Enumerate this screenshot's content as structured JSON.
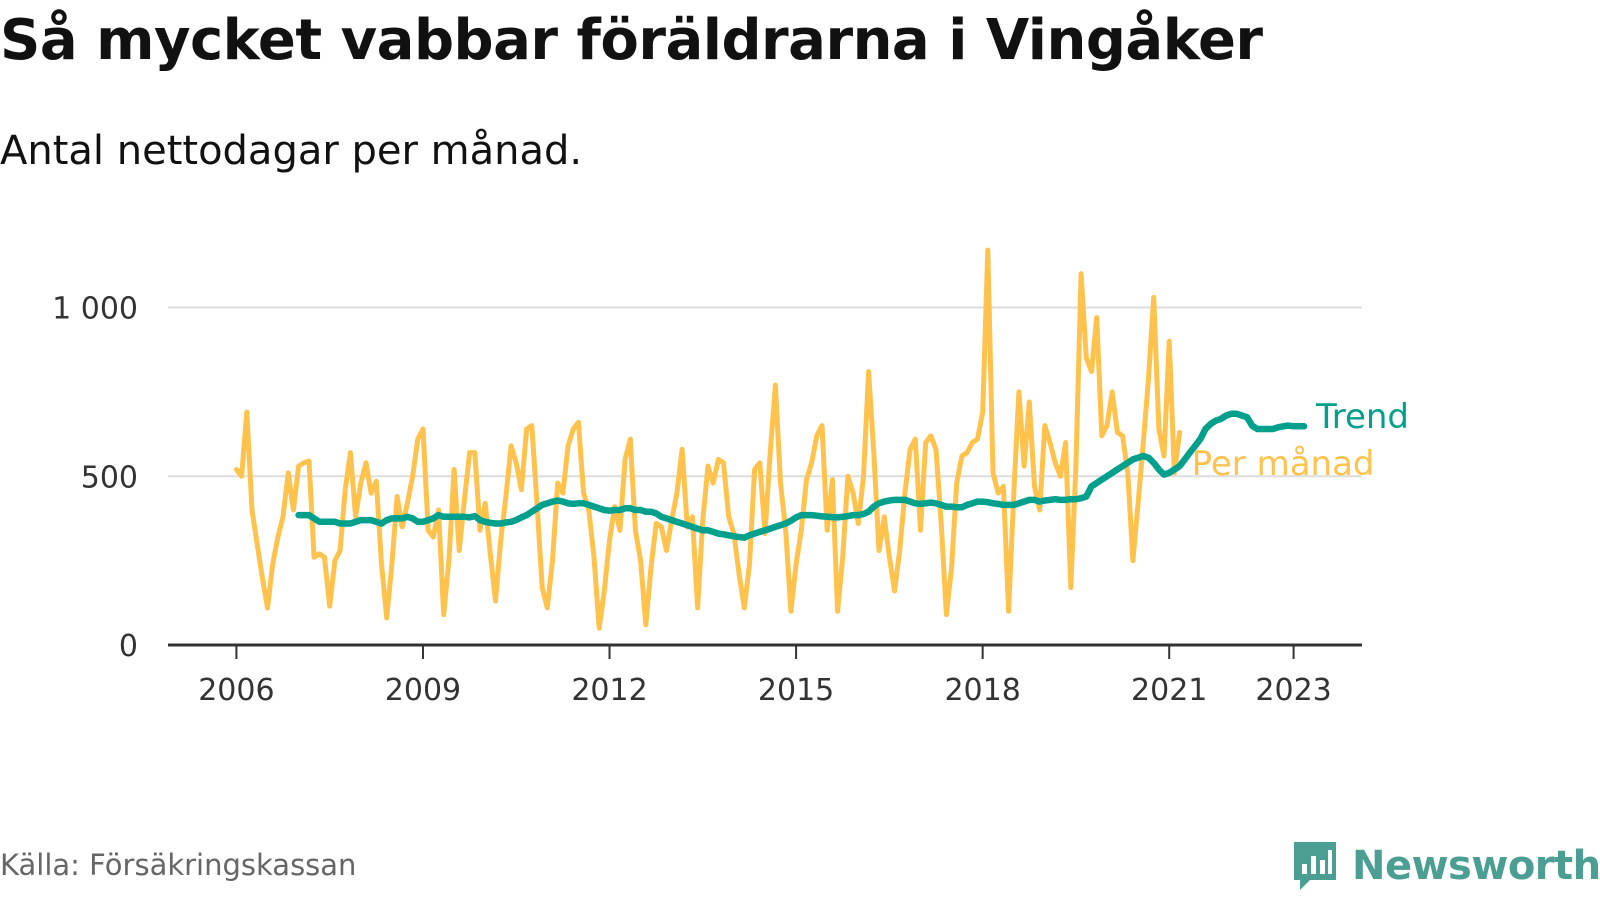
{
  "title": "Så mycket vabbar föräldrarna i Vingåker",
  "subtitle": "Antal nettodagar per månad.",
  "source": "Källa: Försäkringskassan",
  "brand": {
    "name": "Newsworthy",
    "icon": "newsworthy-logo-icon",
    "color": "#4a9e92"
  },
  "colors": {
    "monthly": "#ffc34d",
    "trend": "#00a08c",
    "grid": "#dddddd",
    "axis": "#333333"
  },
  "chart_data": {
    "type": "line",
    "title": "Så mycket vabbar föräldrarna i Vingåker",
    "subtitle": "Antal nettodagar per månad.",
    "xlabel": "",
    "ylabel": "",
    "ylim": [
      0,
      1200
    ],
    "xlim": [
      2004.9,
      2024.1
    ],
    "yticks": [
      0,
      500,
      1000
    ],
    "ytick_labels": [
      "0",
      "500",
      "1 000"
    ],
    "xticks": [
      2006,
      2009,
      2012,
      2015,
      2018,
      2021,
      2023
    ],
    "xtick_labels": [
      "2006",
      "2009",
      "2012",
      "2015",
      "2018",
      "2021",
      "2023"
    ],
    "grid": true,
    "series": [
      {
        "name": "Per månad",
        "color": "#ffc34d",
        "start": "2006-01",
        "values": [
          520,
          500,
          690,
          400,
          300,
          200,
          110,
          240,
          320,
          380,
          510,
          400,
          530,
          540,
          545,
          260,
          270,
          260,
          115,
          250,
          280,
          460,
          570,
          380,
          480,
          540,
          450,
          485,
          240,
          80,
          240,
          440,
          350,
          420,
          500,
          610,
          640,
          340,
          320,
          400,
          90,
          250,
          520,
          280,
          430,
          570,
          570,
          340,
          420,
          270,
          130,
          310,
          440,
          590,
          540,
          460,
          640,
          650,
          420,
          170,
          110,
          250,
          480,
          450,
          590,
          640,
          660,
          450,
          400,
          260,
          50,
          160,
          310,
          410,
          340,
          550,
          610,
          340,
          250,
          60,
          230,
          360,
          350,
          280,
          370,
          450,
          580,
          350,
          380,
          110,
          370,
          530,
          480,
          550,
          540,
          380,
          330,
          210,
          110,
          240,
          520,
          540,
          330,
          570,
          770,
          480,
          340,
          100,
          240,
          340,
          490,
          540,
          620,
          650,
          340,
          490,
          100,
          260,
          500,
          450,
          360,
          500,
          810,
          570,
          280,
          380,
          260,
          160,
          280,
          450,
          580,
          610,
          340,
          600,
          620,
          580,
          360,
          90,
          230,
          480,
          560,
          570,
          600,
          610,
          690,
          1170,
          510,
          450,
          470,
          100,
          450,
          750,
          530,
          720,
          470,
          400,
          650,
          600,
          540,
          500,
          600,
          170,
          530,
          1100,
          850,
          810,
          970,
          620,
          650,
          750,
          630,
          620,
          510,
          250,
          420,
          600,
          790,
          1030,
          640,
          560,
          900,
          510,
          630
        ]
      },
      {
        "name": "Trend",
        "color": "#00a08c",
        "start": "2007-01",
        "values": [
          385,
          385,
          385,
          375,
          365,
          365,
          365,
          365,
          360,
          360,
          360,
          365,
          370,
          370,
          370,
          365,
          360,
          370,
          375,
          375,
          375,
          380,
          375,
          365,
          365,
          370,
          375,
          385,
          380,
          380,
          380,
          380,
          380,
          378,
          382,
          370,
          365,
          362,
          360,
          360,
          363,
          365,
          370,
          378,
          385,
          395,
          405,
          415,
          420,
          425,
          428,
          425,
          420,
          418,
          420,
          420,
          415,
          410,
          405,
          400,
          398,
          400,
          400,
          405,
          405,
          400,
          400,
          395,
          395,
          390,
          380,
          375,
          370,
          365,
          360,
          355,
          350,
          345,
          340,
          340,
          335,
          330,
          328,
          325,
          322,
          320,
          318,
          325,
          330,
          335,
          340,
          345,
          350,
          355,
          360,
          368,
          378,
          385,
          385,
          385,
          383,
          381,
          380,
          379,
          378,
          380,
          382,
          385,
          385,
          388,
          395,
          410,
          420,
          425,
          428,
          430,
          430,
          430,
          425,
          420,
          418,
          420,
          422,
          420,
          415,
          410,
          410,
          408,
          408,
          415,
          420,
          425,
          425,
          423,
          420,
          418,
          415,
          415,
          415,
          420,
          425,
          430,
          430,
          425,
          428,
          430,
          432,
          430,
          430,
          432,
          432,
          435,
          440,
          470,
          480,
          490,
          500,
          510,
          520,
          530,
          540,
          550,
          555,
          560,
          555,
          540,
          520,
          505,
          510,
          520,
          530,
          550,
          570,
          590,
          610,
          640,
          655,
          665,
          670,
          680,
          685,
          685,
          680,
          675,
          650,
          640,
          640,
          640,
          640,
          645,
          648,
          650,
          648,
          648,
          648
        ]
      }
    ],
    "legend": {
      "placement": "right-end",
      "entries": [
        "Trend",
        "Per månad"
      ]
    }
  }
}
